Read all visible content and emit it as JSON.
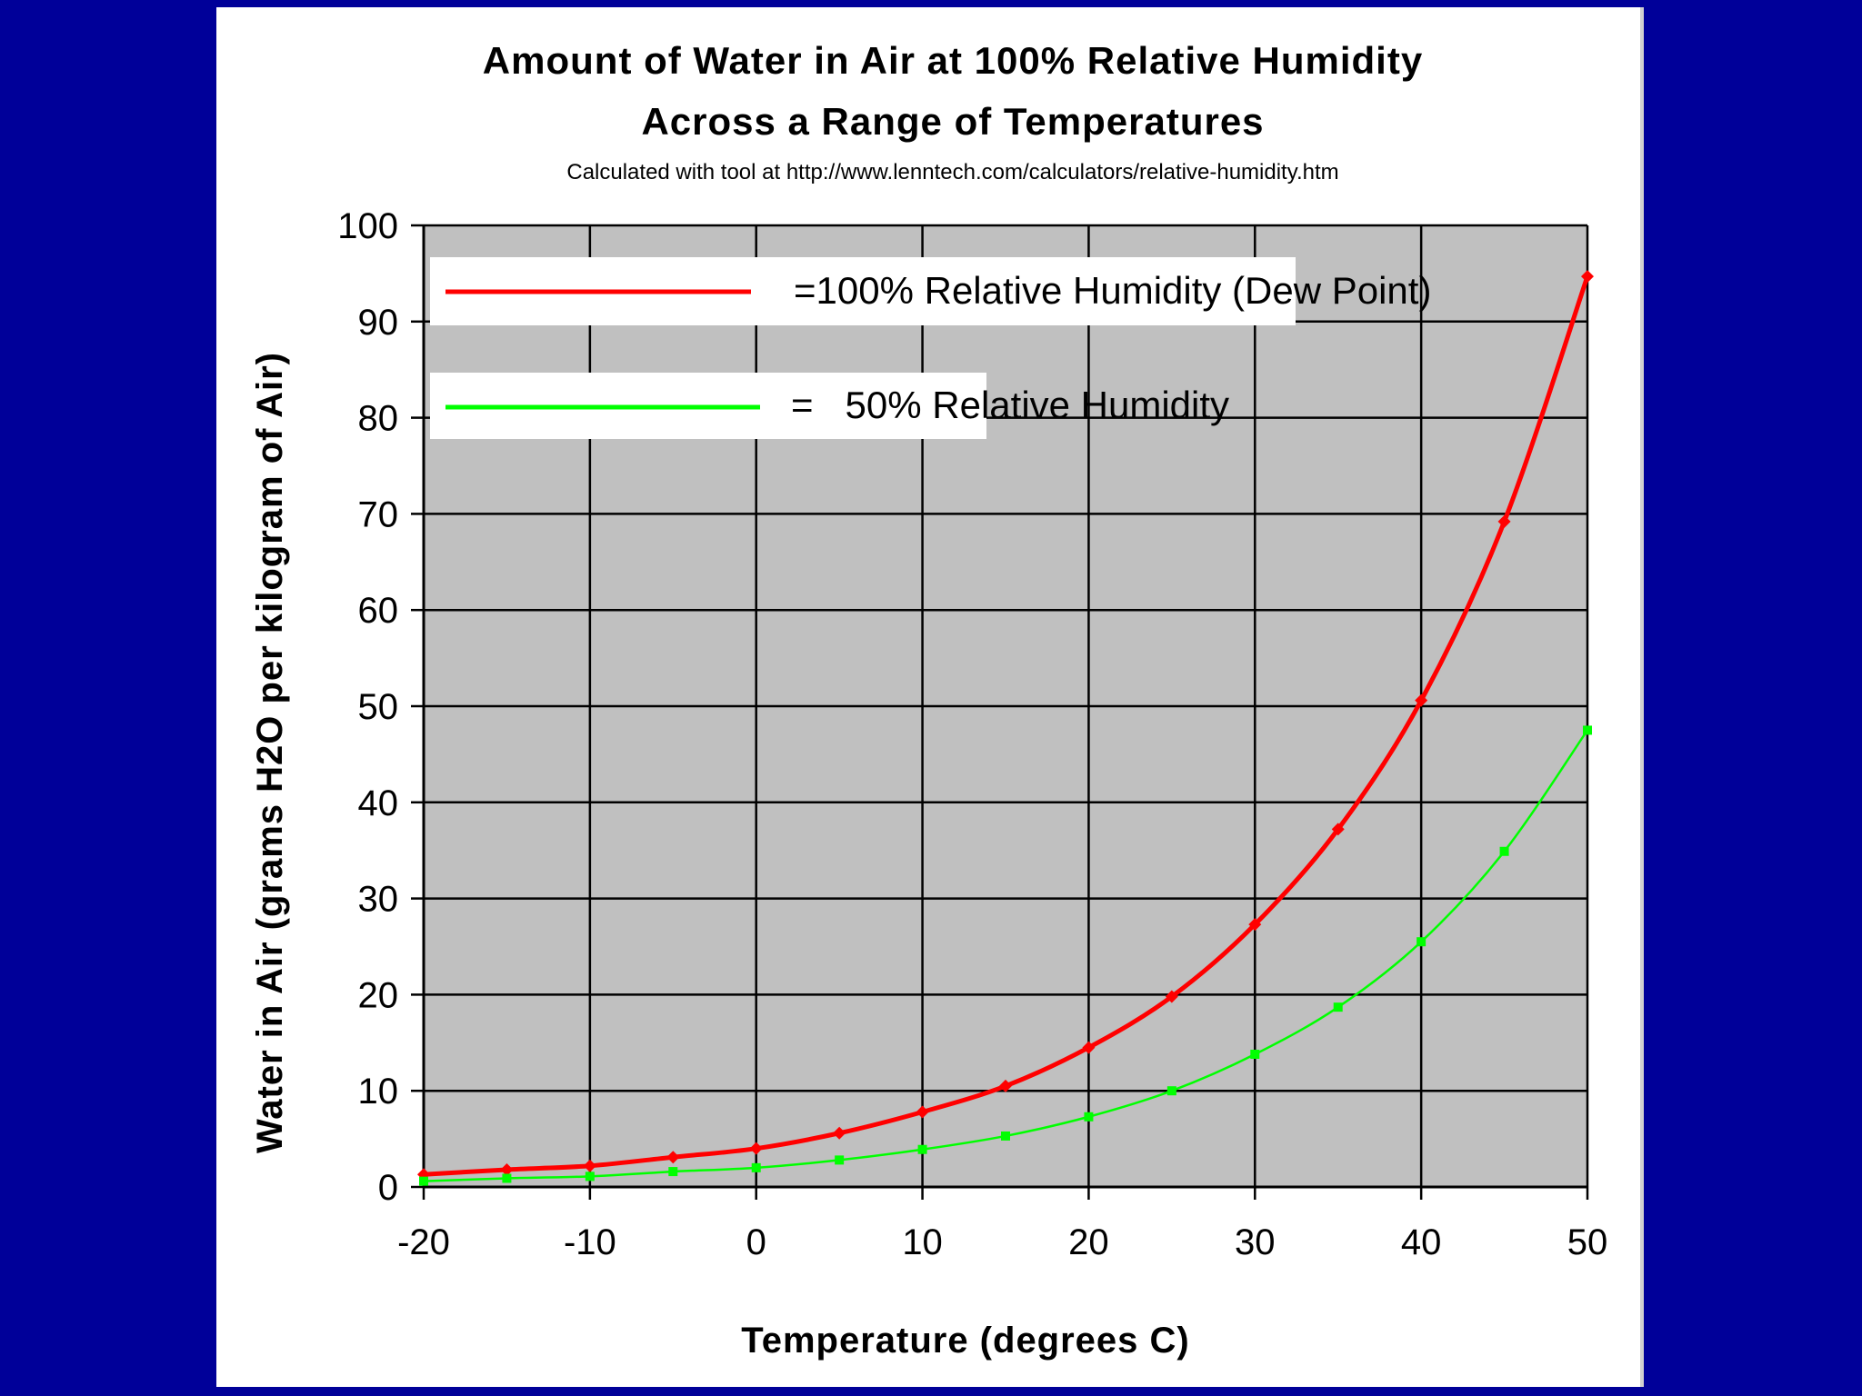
{
  "colors": {
    "background": "#000099",
    "panel": "#ffffff",
    "plot_area": "#c0c0c0",
    "grid": "#000000",
    "series_100": "#ff0000",
    "series_50": "#00ff00"
  },
  "chart_data": {
    "type": "line",
    "title_line1": "Amount of Water in Air at 100% Relative Humidity",
    "title_line2": "Across a Range of Temperatures",
    "subtitle": "Calculated with tool at http://www.lenntech.com/calculators/relative-humidity.htm",
    "xlabel": "Temperature (degrees C)",
    "ylabel": "Water in Air (grams H2O per kilogram of Air)",
    "xlim": [
      -20,
      50
    ],
    "ylim": [
      0,
      100
    ],
    "x_ticks": [
      "-20",
      "-10",
      "0",
      "10",
      "20",
      "30",
      "40",
      "50"
    ],
    "y_ticks": [
      "0",
      "10",
      "20",
      "30",
      "40",
      "50",
      "60",
      "70",
      "80",
      "90",
      "100"
    ],
    "grid": true,
    "legend_position": "top-left",
    "x": [
      -20,
      -15,
      -10,
      -5,
      0,
      5,
      10,
      15,
      20,
      25,
      30,
      35,
      40,
      45,
      50
    ],
    "series": [
      {
        "name": "=100% Relative Humidity (Dew Point)",
        "color": "#ff0000",
        "values": [
          1.3,
          1.8,
          2.2,
          3.1,
          4.0,
          5.6,
          7.8,
          10.5,
          14.5,
          19.8,
          27.3,
          37.2,
          50.6,
          69.2,
          94.7
        ]
      },
      {
        "name": "=   50% Relative Humidity",
        "color": "#00ff00",
        "values": [
          0.6,
          0.9,
          1.1,
          1.6,
          2.0,
          2.8,
          3.9,
          5.3,
          7.3,
          10.0,
          13.8,
          18.7,
          25.5,
          34.9,
          47.5
        ]
      }
    ]
  }
}
